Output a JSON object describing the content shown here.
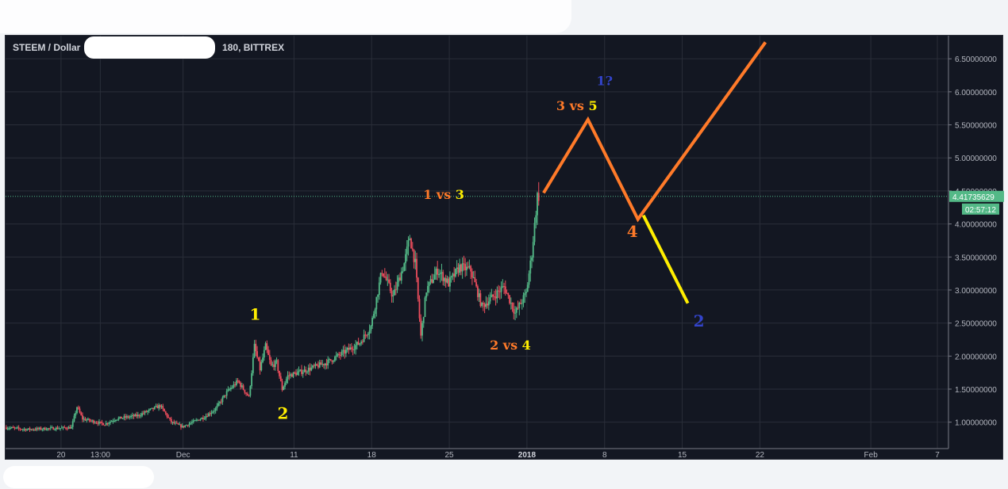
{
  "header": {
    "symbol_title": "STEEM / Dollar",
    "symbol_suffix": "180, BITTREX"
  },
  "colors": {
    "background": "#131722",
    "grid": "#2a2e39",
    "up_candle": "#53b987",
    "down_candle": "#eb4d5c",
    "price_line": "#53b987",
    "wave_orange": "#ff7a29",
    "wave_yellow": "#ffee00",
    "wave_blue": "#3344cc"
  },
  "chart_data": {
    "type": "candlestick",
    "symbol": "STEEM / Dollar",
    "exchange": "BITTREX",
    "y_axis": {
      "scale": "linear",
      "ylim": [
        0.6,
        6.85
      ],
      "ticks": [
        "6.50000000",
        "6.00000000",
        "5.50000000",
        "5.00000000",
        "4.50000000",
        "4.00000000",
        "3.50000000",
        "3.00000000",
        "2.50000000",
        "2.00000000",
        "1.50000000",
        "1.00000000"
      ],
      "tick_values": [
        6.5,
        6.0,
        5.5,
        5.0,
        4.5,
        4.0,
        3.5,
        3.0,
        2.5,
        2.0,
        1.5,
        1.0
      ]
    },
    "x_axis": {
      "unit": "days",
      "xlim": [
        "2017-11-15",
        "2018-02-08"
      ],
      "ticks": [
        {
          "label": "20",
          "date": "2017-11-20",
          "bold": false
        },
        {
          "label": "13:00",
          "date": "2017-11-23T13:00",
          "bold": false
        },
        {
          "label": "Dec",
          "date": "2017-12-01",
          "bold": false
        },
        {
          "label": "11",
          "date": "2017-12-11",
          "bold": false
        },
        {
          "label": "18",
          "date": "2017-12-18",
          "bold": false
        },
        {
          "label": "25",
          "date": "2017-12-25",
          "bold": false
        },
        {
          "label": "2018",
          "date": "2018-01-01",
          "bold": true
        },
        {
          "label": "8",
          "date": "2018-01-08",
          "bold": false
        },
        {
          "label": "15",
          "date": "2018-01-15",
          "bold": false
        },
        {
          "label": "22",
          "date": "2018-01-22",
          "bold": false
        },
        {
          "label": "Feb",
          "date": "2018-02-01",
          "bold": false
        },
        {
          "label": "7",
          "date": "2018-02-07",
          "bold": false
        }
      ]
    },
    "grid": true,
    "price_path": [
      {
        "date": "2017-11-15",
        "price": 0.92
      },
      {
        "date": "2017-11-17",
        "price": 0.89
      },
      {
        "date": "2017-11-20",
        "price": 0.91
      },
      {
        "date": "2017-11-21",
        "price": 0.92
      },
      {
        "date": "2017-11-21T12:00",
        "price": 1.23
      },
      {
        "date": "2017-11-22",
        "price": 1.05
      },
      {
        "date": "2017-11-24",
        "price": 0.97
      },
      {
        "date": "2017-11-25",
        "price": 1.05
      },
      {
        "date": "2017-11-27",
        "price": 1.1
      },
      {
        "date": "2017-11-29",
        "price": 1.25
      },
      {
        "date": "2017-11-30",
        "price": 1.0
      },
      {
        "date": "2017-12-01",
        "price": 0.93
      },
      {
        "date": "2017-12-03",
        "price": 1.08
      },
      {
        "date": "2017-12-04",
        "price": 1.2
      },
      {
        "date": "2017-12-05",
        "price": 1.45
      },
      {
        "date": "2017-12-06",
        "price": 1.62
      },
      {
        "date": "2017-12-07",
        "price": 1.38
      },
      {
        "date": "2017-12-07T12:00",
        "price": 2.15
      },
      {
        "date": "2017-12-08",
        "price": 1.8
      },
      {
        "date": "2017-12-08T12:00",
        "price": 2.15
      },
      {
        "date": "2017-12-09",
        "price": 1.85
      },
      {
        "date": "2017-12-09T12:00",
        "price": 1.9
      },
      {
        "date": "2017-12-10",
        "price": 1.5
      },
      {
        "date": "2017-12-10T12:00",
        "price": 1.7
      },
      {
        "date": "2017-12-12",
        "price": 1.78
      },
      {
        "date": "2017-12-14",
        "price": 1.9
      },
      {
        "date": "2017-12-16",
        "price": 2.1
      },
      {
        "date": "2017-12-17",
        "price": 2.2
      },
      {
        "date": "2017-12-18",
        "price": 2.45
      },
      {
        "date": "2017-12-19",
        "price": 3.3
      },
      {
        "date": "2017-12-20",
        "price": 2.9
      },
      {
        "date": "2017-12-21",
        "price": 3.4
      },
      {
        "date": "2017-12-21T12:00",
        "price": 3.8
      },
      {
        "date": "2017-12-22",
        "price": 3.4
      },
      {
        "date": "2017-12-22T12:00",
        "price": 2.3
      },
      {
        "date": "2017-12-23",
        "price": 3.0
      },
      {
        "date": "2017-12-24",
        "price": 3.3
      },
      {
        "date": "2017-12-25",
        "price": 3.1
      },
      {
        "date": "2017-12-26",
        "price": 3.35
      },
      {
        "date": "2017-12-27",
        "price": 3.3
      },
      {
        "date": "2017-12-28",
        "price": 2.75
      },
      {
        "date": "2017-12-29",
        "price": 2.9
      },
      {
        "date": "2017-12-30",
        "price": 3.05
      },
      {
        "date": "2017-12-31",
        "price": 2.65
      },
      {
        "date": "2018-01-01",
        "price": 2.95
      },
      {
        "date": "2018-01-01T12:00",
        "price": 3.55
      },
      {
        "date": "2018-01-02",
        "price": 4.42
      }
    ],
    "last_price": {
      "value": 4.41735629,
      "label": "4.41735629",
      "countdown": "02:57:12"
    },
    "annotations": [
      {
        "text": "1",
        "date": "2017-12-07T12:00",
        "price": 2.55,
        "color": "#ffee00"
      },
      {
        "text": "2",
        "date": "2017-12-10",
        "price": 1.05,
        "color": "#ffee00"
      },
      {
        "text": "1 vs 3",
        "date": "2017-12-24T12:00",
        "price": 4.38,
        "color_1": "#ff7a29",
        "color_2": "#ffee00"
      },
      {
        "text": "2 vs 4",
        "date": "2017-12-30T12:00",
        "price": 2.1,
        "color_1": "#ff7a29",
        "color_2": "#ffee00"
      },
      {
        "text": "3 vs 5",
        "date": "2018-01-05T12:00",
        "price": 5.72,
        "color_1": "#ff7a29",
        "color_2": "#ffee00"
      },
      {
        "text": "1?",
        "date": "2018-01-08",
        "price": 6.1,
        "color": "#3344cc"
      },
      {
        "text": "4",
        "date": "2018-01-10T12:00",
        "price": 3.8,
        "color": "#ff7a29"
      },
      {
        "text": "2",
        "date": "2018-01-16T12:00",
        "price": 2.45,
        "color": "#3344cc"
      }
    ],
    "projection_orange": [
      {
        "date": "2018-01-02T12:00",
        "price": 4.47
      },
      {
        "date": "2018-01-06T12:00",
        "price": 5.58
      },
      {
        "date": "2018-01-11",
        "price": 4.07
      },
      {
        "date": "2018-01-22T12:00",
        "price": 6.75
      }
    ],
    "projection_yellow": [
      {
        "date": "2018-01-11T12:00",
        "price": 4.13
      },
      {
        "date": "2018-01-15T12:00",
        "price": 2.8
      }
    ]
  }
}
